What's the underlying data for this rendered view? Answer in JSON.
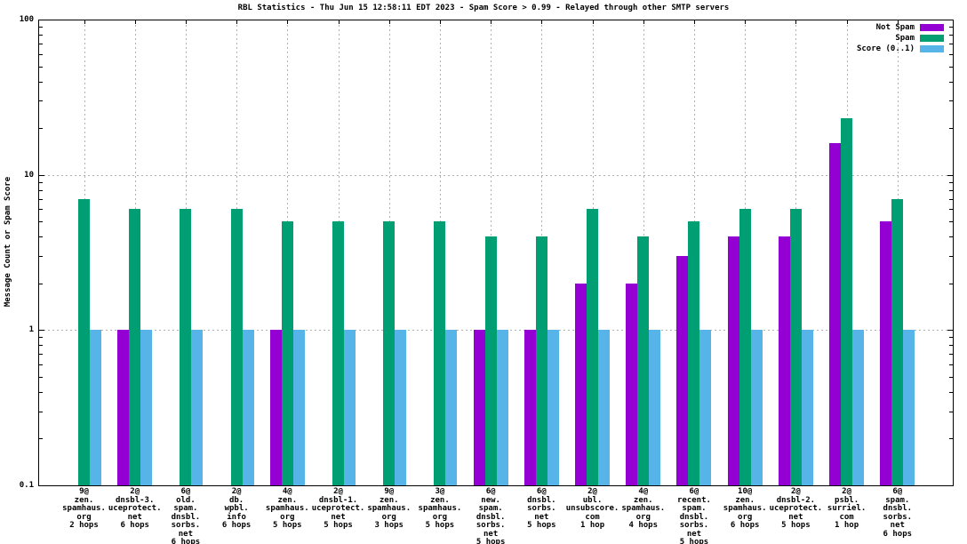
{
  "chart_data": {
    "type": "bar",
    "title": "RBL Statistics - Thu Jun 15 12:58:11 EDT 2023 - Spam Score > 0.99 - Relayed through other SMTP servers",
    "ylabel": "Message Count or Spam Score",
    "xlabel": "",
    "y_scale": "log10",
    "ylim": [
      0.1,
      100
    ],
    "ytick_values": [
      100,
      10,
      1,
      0.1
    ],
    "ytick_labels": [
      "100",
      "10",
      "1",
      "0.1"
    ],
    "grid": true,
    "legend_position": "top-right-inside",
    "background_color": "#ffffff",
    "grid_color": "#b0b0b0",
    "categories": [
      [
        "9@",
        "zen.",
        "spamhaus.",
        "org",
        "2 hops"
      ],
      [
        "2@",
        "dnsbl-3.",
        "uceprotect.",
        "net",
        "6 hops"
      ],
      [
        "6@",
        "old.",
        "spam.",
        "dnsbl.",
        "sorbs.",
        "net",
        "6 hops"
      ],
      [
        "2@",
        "db.",
        "wpbl.",
        "info",
        "6 hops"
      ],
      [
        "4@",
        "zen.",
        "spamhaus.",
        "org",
        "5 hops"
      ],
      [
        "2@",
        "dnsbl-1.",
        "uceprotect.",
        "net",
        "5 hops"
      ],
      [
        "9@",
        "zen.",
        "spamhaus.",
        "org",
        "3 hops"
      ],
      [
        "3@",
        "zen.",
        "spamhaus.",
        "org",
        "5 hops"
      ],
      [
        "6@",
        "new.",
        "spam.",
        "dnsbl.",
        "sorbs.",
        "net",
        "5 hops"
      ],
      [
        "6@",
        "dnsbl.",
        "sorbs.",
        "net",
        "5 hops"
      ],
      [
        "2@",
        "ubl.",
        "unsubscore.",
        "com",
        "1 hop"
      ],
      [
        "4@",
        "zen.",
        "spamhaus.",
        "org",
        "4 hops"
      ],
      [
        "6@",
        "recent.",
        "spam.",
        "dnsbl.",
        "sorbs.",
        "net",
        "5 hops"
      ],
      [
        "10@",
        "zen.",
        "spamhaus.",
        "org",
        "6 hops"
      ],
      [
        "2@",
        "dnsbl-2.",
        "uceprotect.",
        "net",
        "5 hops"
      ],
      [
        "2@",
        "psbl.",
        "surriel.",
        "com",
        "1 hop"
      ],
      [
        "6@",
        "spam.",
        "dnsbl.",
        "sorbs.",
        "net",
        "6 hops"
      ]
    ],
    "series": [
      {
        "name": "Not Spam",
        "color": "#9400d3",
        "values": [
          0,
          1,
          0,
          0,
          1,
          0,
          0,
          0,
          1,
          1,
          2,
          2,
          3,
          4,
          4,
          16,
          5
        ]
      },
      {
        "name": "Spam",
        "color": "#009e73",
        "values": [
          7,
          6,
          6,
          6,
          5,
          5,
          5,
          5,
          4,
          4,
          6,
          4,
          5,
          6,
          6,
          23,
          7
        ]
      },
      {
        "name": "Score (0..1)",
        "color": "#56b4e9",
        "values": [
          1,
          1,
          1,
          1,
          1,
          1,
          1,
          1,
          1,
          1,
          1,
          1,
          1,
          1,
          1,
          1,
          1
        ]
      }
    ]
  }
}
